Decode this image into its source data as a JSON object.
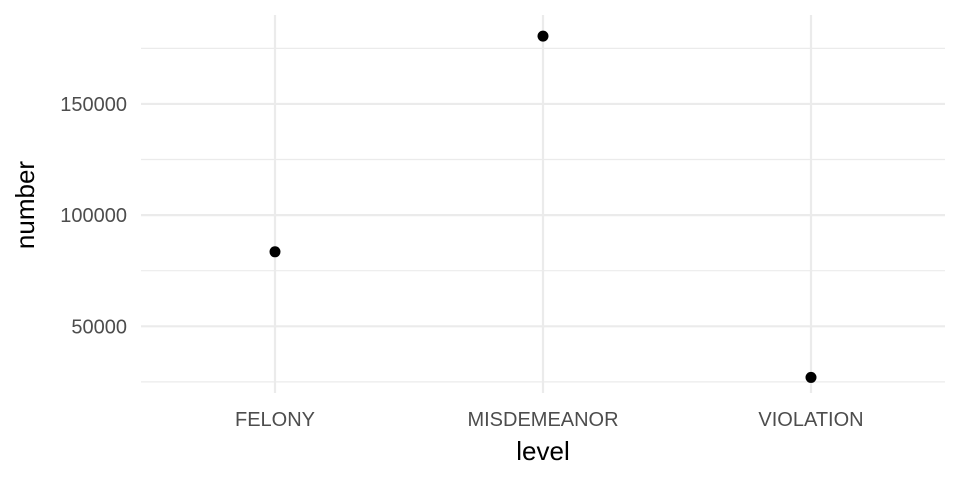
{
  "chart_data": {
    "type": "scatter",
    "title": "",
    "xlabel": "level",
    "ylabel": "number",
    "categories": [
      "FELONY",
      "MISDEMEANOR",
      "VIOLATION"
    ],
    "values": [
      83500,
      180500,
      27000
    ],
    "ylim": [
      20000,
      190000
    ],
    "y_ticks": [
      50000,
      100000,
      150000
    ],
    "grid": true,
    "legend": "none",
    "colors": {
      "point": "#000000",
      "grid": "#ebebeb",
      "background": "#ffffff"
    }
  }
}
